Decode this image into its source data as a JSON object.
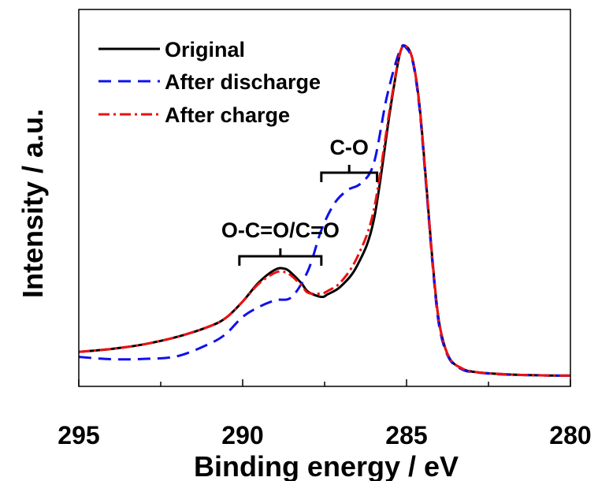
{
  "chart_data": {
    "type": "line",
    "title": "",
    "xlabel": "Binding energy / eV",
    "ylabel": "Intensity / a.u.",
    "xlim": [
      295,
      280
    ],
    "x_reversed": true,
    "ylim": [
      0,
      1
    ],
    "y_ticks_shown": false,
    "x_ticks": [
      295,
      290,
      285,
      280
    ],
    "grid": false,
    "legend_position": "top-left",
    "annotations": [
      {
        "text": "O-C=O/C=O",
        "x_range": [
          290.1,
          287.6
        ]
      },
      {
        "text": "C-O",
        "x_range": [
          287.6,
          285.9
        ]
      }
    ],
    "series": [
      {
        "name": "Original",
        "color": "#000000",
        "dash": "solid",
        "x": [
          295,
          294,
          293,
          292,
          291,
          290.5,
          290,
          289.5,
          289.0,
          288.7,
          288.5,
          288.2,
          288.0,
          287.6,
          287.4,
          287.0,
          286.5,
          286.0,
          285.5,
          285.2,
          285.0,
          284.8,
          284.6,
          284.4,
          284.2,
          284.0,
          283.7,
          283.3,
          283.0,
          282.5,
          282.0,
          281.5,
          281.0,
          280.5,
          280.0
        ],
        "y": [
          0.075,
          0.084,
          0.098,
          0.12,
          0.152,
          0.178,
          0.226,
          0.284,
          0.322,
          0.324,
          0.31,
          0.28,
          0.255,
          0.24,
          0.248,
          0.272,
          0.335,
          0.47,
          0.8,
          0.97,
          0.99,
          0.945,
          0.81,
          0.58,
          0.34,
          0.16,
          0.058,
          0.025,
          0.016,
          0.011,
          0.008,
          0.006,
          0.005,
          0.004,
          0.004
        ]
      },
      {
        "name": "After discharge",
        "color": "#1010ee",
        "dash": "dashed",
        "x": [
          295,
          294,
          293,
          292,
          291,
          290.5,
          290,
          289.5,
          289.0,
          288.5,
          288.0,
          287.6,
          287.2,
          286.8,
          286.4,
          286.0,
          285.6,
          285.2,
          285.0,
          284.8,
          284.6,
          284.4,
          284.2,
          284.0,
          283.7,
          283.3,
          283.0,
          282.5,
          282.0,
          281.5,
          281.0,
          280.5,
          280.0
        ],
        "y": [
          0.06,
          0.053,
          0.054,
          0.062,
          0.1,
          0.13,
          0.18,
          0.21,
          0.23,
          0.24,
          0.32,
          0.44,
          0.52,
          0.56,
          0.58,
          0.64,
          0.84,
          0.98,
          0.985,
          0.94,
          0.8,
          0.57,
          0.33,
          0.15,
          0.055,
          0.022,
          0.015,
          0.01,
          0.007,
          0.006,
          0.005,
          0.004,
          0.004
        ]
      },
      {
        "name": "After charge",
        "color": "#ee1010",
        "dash": "dashdot",
        "x": [
          295,
          294,
          293,
          292,
          291,
          290.5,
          290,
          289.5,
          289.0,
          288.7,
          288.5,
          288.2,
          288.0,
          287.6,
          287.4,
          287.0,
          286.5,
          286.0,
          285.5,
          285.2,
          285.0,
          284.8,
          284.6,
          284.4,
          284.2,
          284.0,
          283.7,
          283.3,
          283.0,
          282.5,
          282.0,
          281.5,
          281.0,
          280.5,
          280.0
        ],
        "y": [
          0.075,
          0.084,
          0.098,
          0.12,
          0.152,
          0.178,
          0.226,
          0.28,
          0.313,
          0.314,
          0.302,
          0.274,
          0.252,
          0.25,
          0.258,
          0.285,
          0.36,
          0.5,
          0.81,
          0.97,
          0.99,
          0.945,
          0.81,
          0.58,
          0.34,
          0.16,
          0.058,
          0.025,
          0.016,
          0.011,
          0.008,
          0.006,
          0.005,
          0.004,
          0.004
        ]
      }
    ]
  }
}
